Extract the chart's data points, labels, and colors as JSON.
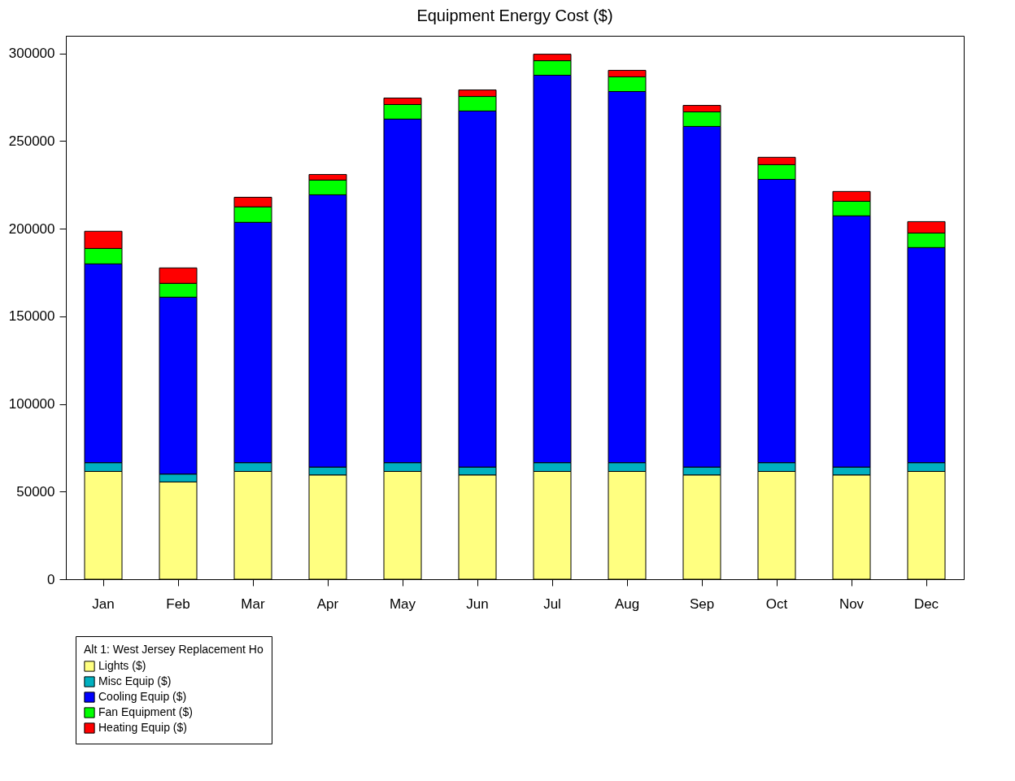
{
  "chart_data": {
    "type": "bar",
    "title": "Equipment Energy Cost ($)",
    "stacked": true,
    "legend": "bottom left",
    "legend_title": "Alt 1: West Jersey Replacement Ho",
    "grid": false,
    "categories": [
      "Jan",
      "Feb",
      "Mar",
      "Apr",
      "May",
      "Jun",
      "Jul",
      "Aug",
      "Sep",
      "Oct",
      "Nov",
      "Dec"
    ],
    "ylim": [
      0,
      310000
    ],
    "yticks": [
      0,
      50000,
      100000,
      150000,
      200000,
      250000,
      300000
    ],
    "series": [
      {
        "name": "Lights ($)",
        "color": "#ffff80",
        "values": [
          61500,
          55500,
          61500,
          59500,
          61500,
          59500,
          61500,
          61500,
          59500,
          61500,
          59500,
          61500
        ]
      },
      {
        "name": "Misc Equip ($)",
        "color": "#00b0c0",
        "values": [
          5000,
          4500,
          5000,
          4500,
          5000,
          4500,
          5000,
          5000,
          4500,
          5000,
          4500,
          5000
        ]
      },
      {
        "name": "Cooling Equip ($)",
        "color": "#0000ff",
        "values": [
          113400,
          100900,
          137100,
          155300,
          196000,
          203100,
          221000,
          211700,
          194300,
          161600,
          143300,
          122700
        ]
      },
      {
        "name": "Fan Equipment ($)",
        "color": "#00ff00",
        "values": [
          8800,
          7900,
          8800,
          8400,
          8300,
          8300,
          8300,
          8400,
          8300,
          8400,
          8300,
          8300
        ]
      },
      {
        "name": "Heating Equip ($)",
        "color": "#ff0000",
        "values": [
          9800,
          8800,
          5500,
          3200,
          3700,
          3700,
          3700,
          3700,
          3700,
          4200,
          5600,
          6500
        ]
      }
    ]
  }
}
